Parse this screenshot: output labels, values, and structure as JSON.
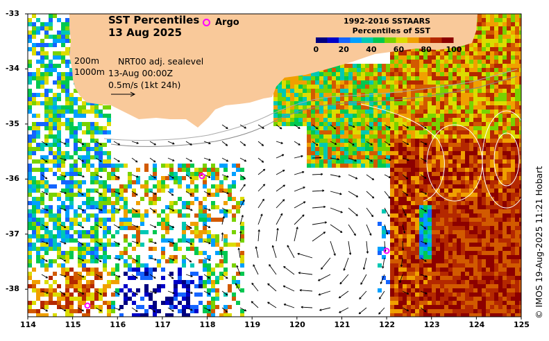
{
  "title": {
    "line1": "SST Percentiles",
    "line2": "13 Aug 2025"
  },
  "argo_label": "Argo",
  "legend": {
    "line1": "1992-2016 SSTAARS",
    "line2": "Percentiles of SST",
    "ticks": [
      "0",
      "20",
      "40",
      "60",
      "80",
      "100"
    ],
    "colors": [
      "#00007f",
      "#0000c8",
      "#1464ff",
      "#00a0ff",
      "#00c8b4",
      "#00c850",
      "#78d200",
      "#dcdc00",
      "#f0a000",
      "#d25a00",
      "#b42800",
      "#8c0000"
    ]
  },
  "depth_labels": [
    "200m",
    "1000m"
  ],
  "info": {
    "line1": "NRT00 adj. sealevel",
    "line2": "13-Aug 00:00Z",
    "line3": "0.5m/s (1kt 24h)"
  },
  "credit": "© IMOS 19-Aug-2025 11:21 Hobart",
  "axes": {
    "x_ticks": [
      "114",
      "115",
      "116",
      "117",
      "118",
      "119",
      "120",
      "121",
      "122",
      "123",
      "124",
      "125"
    ],
    "y_ticks": [
      "-33",
      "-34",
      "-35",
      "-36",
      "-37",
      "-38"
    ],
    "lon_range": [
      114,
      125
    ],
    "lat_range": [
      -33,
      -38.5
    ]
  },
  "colors": {
    "land": "#f9c99a",
    "argo": "#ff00ff",
    "ocean": "#ffffff"
  }
}
